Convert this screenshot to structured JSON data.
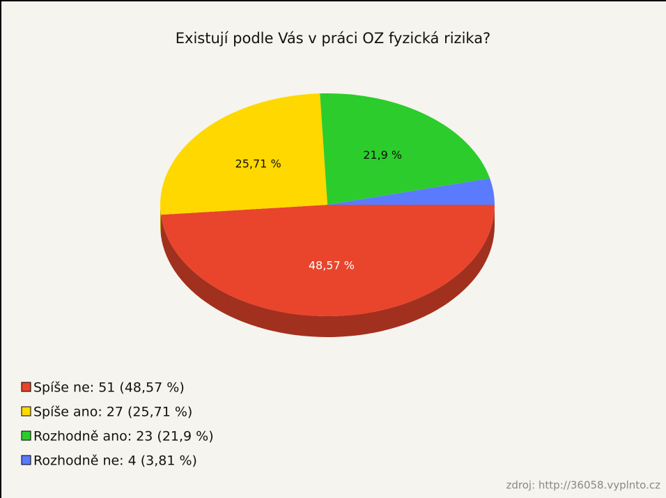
{
  "chart_data": {
    "type": "pie",
    "title": "Existují podle Vás v práci OZ fyzická rizika?",
    "labels": [
      "Spíše ne: 51 (48,57 %)",
      "Spíše ano: 27 (25,71 %)",
      "Rozhodně ano: 23 (21,9 %)",
      "Rozhodně ne: 4 (3,81 %)"
    ],
    "values": [
      48.57,
      25.71,
      21.9,
      3.81
    ],
    "value_labels": [
      "48,57 %",
      "25,71 %",
      "21,9 %",
      null
    ],
    "colors": [
      "#e8452c",
      "#ffd800",
      "#2ccc2c",
      "#5b7bff"
    ],
    "source": "zdroj: http://36058.vyplnto.cz"
  }
}
